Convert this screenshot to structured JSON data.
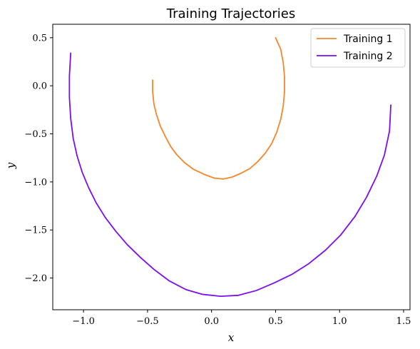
{
  "chart_data": {
    "type": "line",
    "title": "Training Trajectories",
    "xlabel": "x",
    "ylabel": "y",
    "xlim": [
      -1.24,
      1.55
    ],
    "ylim": [
      -2.33,
      0.64
    ],
    "xticks": [
      -1.0,
      -0.5,
      0.0,
      0.5,
      1.0,
      1.5
    ],
    "xtick_labels": [
      "−1.0",
      "−0.5",
      "0.0",
      "0.5",
      "1.0",
      "1.5"
    ],
    "yticks": [
      0.5,
      0.0,
      -0.5,
      -1.0,
      -1.5,
      -2.0
    ],
    "ytick_labels": [
      "0.5",
      "0.0",
      "−0.5",
      "−1.0",
      "−1.5",
      "−2.0"
    ],
    "grid": false,
    "legend": "top-right",
    "series": [
      {
        "name": "Training 1",
        "color": "#f5862a",
        "x": [
          -0.46,
          -0.46,
          -0.45,
          -0.43,
          -0.4,
          -0.36,
          -0.32,
          -0.27,
          -0.21,
          -0.14,
          -0.06,
          0.02,
          0.09,
          0.16,
          0.23,
          0.3,
          0.36,
          0.42,
          0.47,
          0.51,
          0.54,
          0.56,
          0.57,
          0.57,
          0.56,
          0.54,
          0.5
        ],
        "y": [
          0.06,
          -0.06,
          -0.19,
          -0.3,
          -0.42,
          -0.53,
          -0.63,
          -0.72,
          -0.8,
          -0.87,
          -0.92,
          -0.96,
          -0.97,
          -0.95,
          -0.91,
          -0.86,
          -0.79,
          -0.7,
          -0.6,
          -0.48,
          -0.35,
          -0.21,
          -0.06,
          0.09,
          0.24,
          0.38,
          0.5
        ]
      },
      {
        "name": "Training 2",
        "color": "#7b0ef0",
        "x": [
          -1.1,
          -1.11,
          -1.11,
          -1.1,
          -1.08,
          -1.05,
          -1.01,
          -0.96,
          -0.9,
          -0.83,
          -0.75,
          -0.66,
          -0.56,
          -0.45,
          -0.33,
          -0.2,
          -0.07,
          0.07,
          0.21,
          0.35,
          0.49,
          0.63,
          0.76,
          0.89,
          1.01,
          1.12,
          1.21,
          1.29,
          1.35,
          1.39,
          1.4
        ],
        "y": [
          0.34,
          0.1,
          -0.12,
          -0.34,
          -0.55,
          -0.73,
          -0.9,
          -1.06,
          -1.22,
          -1.37,
          -1.51,
          -1.65,
          -1.78,
          -1.91,
          -2.03,
          -2.12,
          -2.17,
          -2.19,
          -2.18,
          -2.13,
          -2.05,
          -1.96,
          -1.85,
          -1.71,
          -1.55,
          -1.36,
          -1.16,
          -0.94,
          -0.72,
          -0.47,
          -0.2
        ]
      }
    ]
  }
}
